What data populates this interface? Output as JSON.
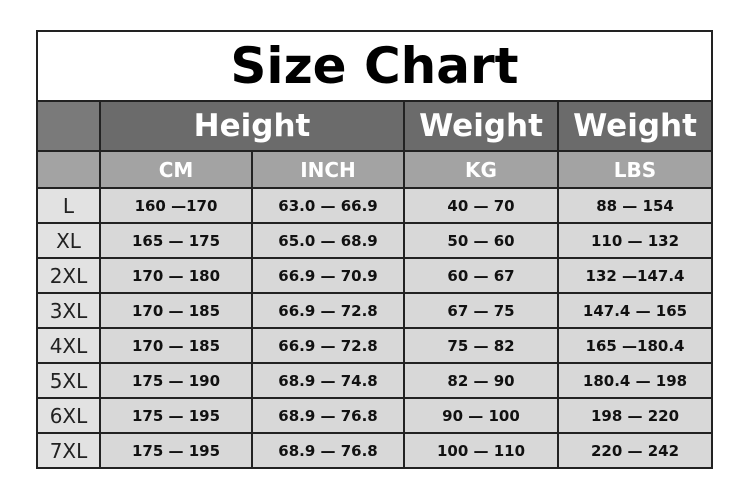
{
  "title": "Size Chart",
  "group_headers": [
    "Height",
    "Weight",
    "Weight"
  ],
  "unit_headers": [
    "CM",
    "INCH",
    "KG",
    "LBS"
  ],
  "rows": [
    {
      "size": "L",
      "cm": "160 —170",
      "inch": "63.0 — 66.9",
      "kg": "40 — 70",
      "lbs": "88 — 154"
    },
    {
      "size": "XL",
      "cm": "165 — 175",
      "inch": "65.0 — 68.9",
      "kg": "50 — 60",
      "lbs": "110 — 132"
    },
    {
      "size": "2XL",
      "cm": "170 — 180",
      "inch": "66.9 — 70.9",
      "kg": "60 — 67",
      "lbs": "132 —147.4"
    },
    {
      "size": "3XL",
      "cm": "170 — 185",
      "inch": "66.9 — 72.8",
      "kg": "67 — 75",
      "lbs": "147.4 — 165"
    },
    {
      "size": "4XL",
      "cm": "170 — 185",
      "inch": "66.9 — 72.8",
      "kg": "75 — 82",
      "lbs": "165 —180.4"
    },
    {
      "size": "5XL",
      "cm": "175 — 190",
      "inch": "68.9 — 74.8",
      "kg": "82 — 90",
      "lbs": "180.4 — 198"
    },
    {
      "size": "6XL",
      "cm": "175 — 195",
      "inch": "68.9 — 76.8",
      "kg": "90 — 100",
      "lbs": "198 — 220"
    },
    {
      "size": "7XL",
      "cm": "175 — 195",
      "inch": "68.9 — 76.8",
      "kg": "100 — 110",
      "lbs": "220 — 242"
    }
  ]
}
